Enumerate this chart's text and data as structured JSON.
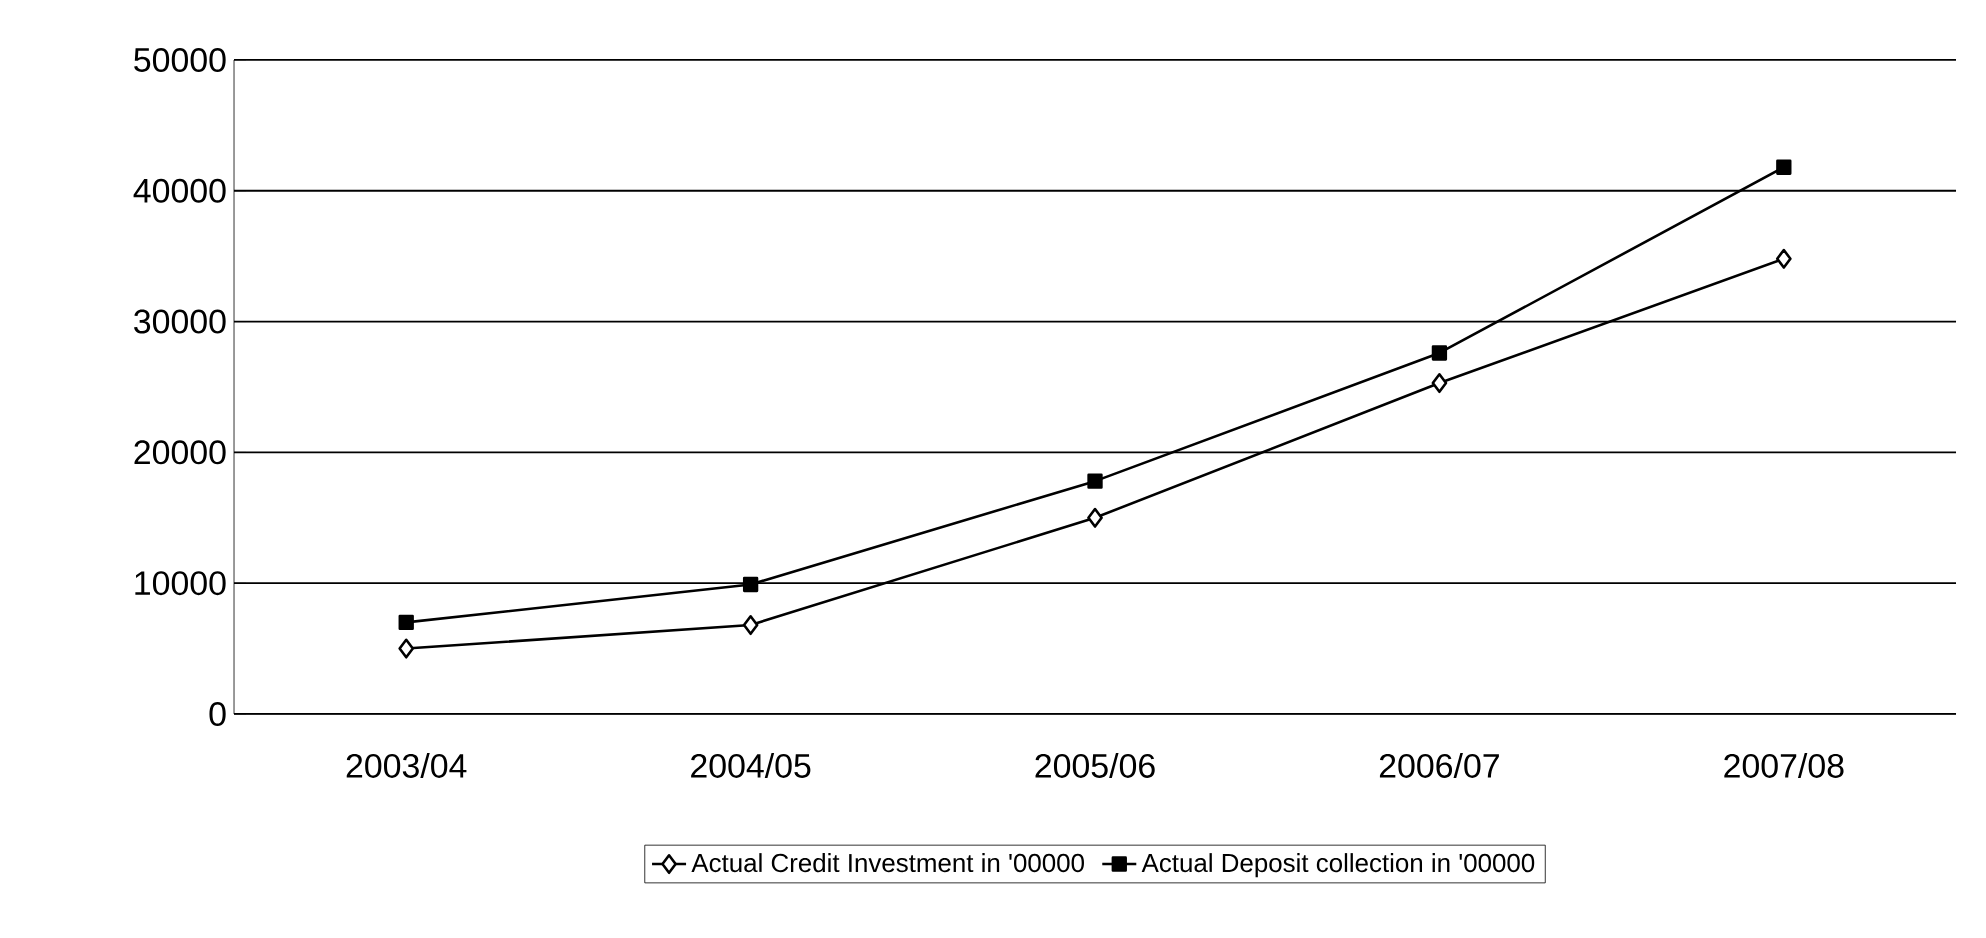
{
  "chart_data": {
    "type": "line",
    "categories": [
      "2003/04",
      "2004/05",
      "2005/06",
      "2006/07",
      "2007/08"
    ],
    "series": [
      {
        "name": "Actual Credit Investment in '00000",
        "color": "#000000",
        "marker": "diamond",
        "values": [
          5000,
          6800,
          15000,
          25300,
          34800
        ]
      },
      {
        "name": "Actual Deposit collection in '00000",
        "color": "#000000",
        "marker": "square",
        "values": [
          7000,
          9900,
          17800,
          27600,
          41800
        ]
      }
    ],
    "ylim": [
      0,
      50000
    ],
    "yticks": [
      0,
      10000,
      20000,
      30000,
      40000,
      50000
    ],
    "grid": "y",
    "legend": "bottom",
    "line_style": "solid"
  }
}
